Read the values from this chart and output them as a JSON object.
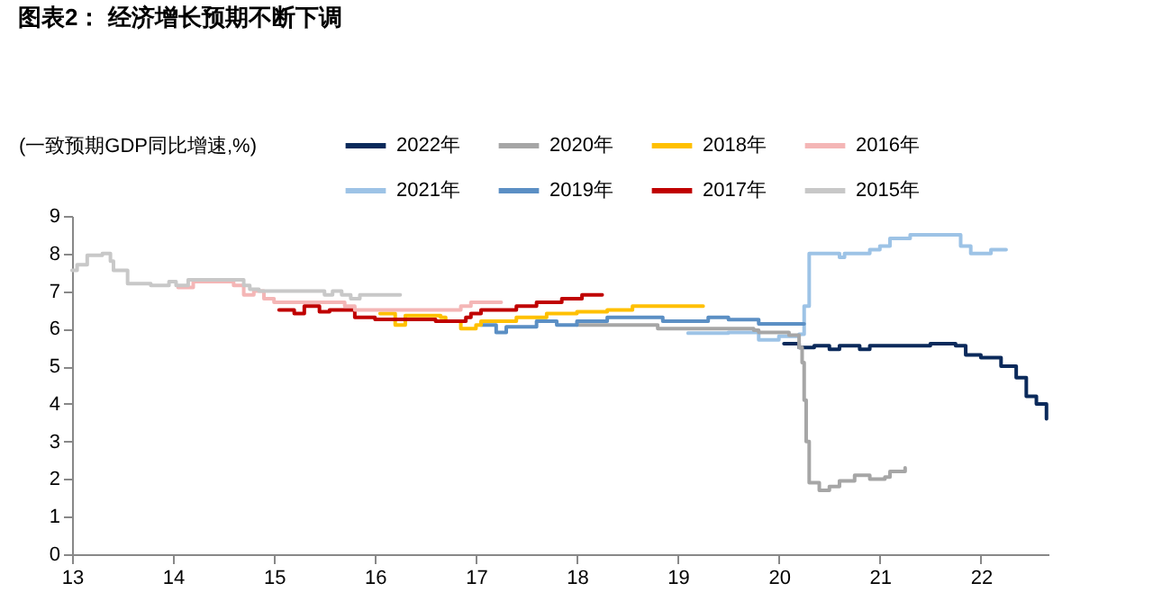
{
  "chart_data": {
    "type": "step",
    "title": "图表2：  经济增长预期不断下调",
    "ylabel": "(一致预期GDP同比增速,%)",
    "xlim": [
      13,
      22.67
    ],
    "xticks": [
      13,
      14,
      15,
      16,
      17,
      18,
      19,
      20,
      21,
      22
    ],
    "ylim": [
      0,
      9
    ],
    "yticks": [
      0,
      1,
      2,
      3,
      4,
      5,
      6,
      7,
      8,
      9
    ],
    "grid": false,
    "legend": "top",
    "series": [
      {
        "name": "2022年",
        "color": "#0b2a5b",
        "x": [
          20.05,
          20.2,
          20.35,
          20.5,
          20.6,
          20.8,
          20.9,
          21.5,
          21.75,
          21.85,
          22.0,
          22.2,
          22.35,
          22.45,
          22.55,
          22.65
        ],
        "values": [
          5.6,
          5.5,
          5.55,
          5.45,
          5.55,
          5.45,
          5.55,
          5.6,
          5.55,
          5.3,
          5.23,
          5.0,
          4.7,
          4.2,
          4.0,
          3.6
        ]
      },
      {
        "name": "2021年",
        "color": "#9dc3e6",
        "x": [
          19.1,
          19.5,
          19.8,
          20.0,
          20.2,
          20.25,
          20.3,
          20.6,
          20.65,
          20.9,
          21.0,
          21.1,
          21.3,
          21.65,
          21.8,
          21.9,
          22.05,
          22.1,
          22.25
        ],
        "values": [
          5.88,
          5.9,
          5.7,
          5.8,
          5.85,
          6.6,
          8.0,
          7.9,
          8.0,
          8.1,
          8.2,
          8.4,
          8.5,
          8.5,
          8.2,
          8.0,
          8.0,
          8.1,
          8.1
        ]
      },
      {
        "name": "2020年",
        "color": "#a6a6a6",
        "x": [
          18.0,
          18.8,
          19.75,
          19.8,
          20.1,
          20.2,
          20.23,
          20.25,
          20.27,
          20.3,
          20.4,
          20.5,
          20.6,
          20.75,
          20.9,
          21.05,
          21.1,
          21.25
        ],
        "values": [
          6.1,
          6.0,
          5.96,
          5.9,
          5.83,
          5.5,
          5.1,
          4.1,
          3.0,
          1.9,
          1.7,
          1.8,
          1.95,
          2.1,
          2.0,
          2.05,
          2.2,
          2.3
        ]
      },
      {
        "name": "2019年",
        "color": "#5b8fc4",
        "x": [
          17.05,
          17.2,
          17.3,
          17.6,
          17.8,
          18.0,
          18.3,
          18.85,
          19.3,
          19.5,
          19.8,
          20.25
        ],
        "values": [
          6.1,
          5.9,
          6.05,
          6.2,
          6.1,
          6.2,
          6.3,
          6.2,
          6.3,
          6.24,
          6.13,
          6.13
        ]
      },
      {
        "name": "2018年",
        "color": "#ffc000",
        "x": [
          16.05,
          16.2,
          16.3,
          16.65,
          16.7,
          16.85,
          17.0,
          17.05,
          17.4,
          17.7,
          18.0,
          18.3,
          18.55,
          19.25
        ],
        "values": [
          6.4,
          6.1,
          6.35,
          6.3,
          6.2,
          6.0,
          6.1,
          6.2,
          6.3,
          6.4,
          6.45,
          6.5,
          6.6,
          6.6
        ]
      },
      {
        "name": "2017年",
        "color": "#c00000",
        "x": [
          15.05,
          15.2,
          15.3,
          15.45,
          15.55,
          15.75,
          15.8,
          16.0,
          16.6,
          16.9,
          16.95,
          17.05,
          17.3,
          17.4,
          17.6,
          17.85,
          18.05,
          18.25
        ],
        "values": [
          6.5,
          6.4,
          6.6,
          6.45,
          6.5,
          6.5,
          6.3,
          6.25,
          6.2,
          6.3,
          6.4,
          6.5,
          6.5,
          6.6,
          6.7,
          6.8,
          6.9,
          6.9
        ]
      },
      {
        "name": "2016年",
        "color": "#f4b6b6",
        "x": [
          14.05,
          14.2,
          14.6,
          14.7,
          14.8,
          14.9,
          15.0,
          15.6,
          15.7,
          15.8,
          16.8,
          16.85,
          16.95,
          17.25
        ],
        "values": [
          7.1,
          7.25,
          7.15,
          6.9,
          7.0,
          6.8,
          6.7,
          6.7,
          6.6,
          6.5,
          6.5,
          6.6,
          6.7,
          6.7
        ]
      },
      {
        "name": "2015年",
        "color": "#c8c8c8",
        "x": [
          13.0,
          13.05,
          13.15,
          13.3,
          13.38,
          13.41,
          13.55,
          13.78,
          13.96,
          14.03,
          14.15,
          14.7,
          14.76,
          14.85,
          15.5,
          15.58,
          15.67,
          15.76,
          15.85,
          16.25
        ],
        "values": [
          7.55,
          7.7,
          7.95,
          8.0,
          7.8,
          7.55,
          7.2,
          7.15,
          7.25,
          7.15,
          7.3,
          7.15,
          7.05,
          7.0,
          6.9,
          7.0,
          6.9,
          6.8,
          6.9,
          6.9
        ]
      }
    ]
  }
}
